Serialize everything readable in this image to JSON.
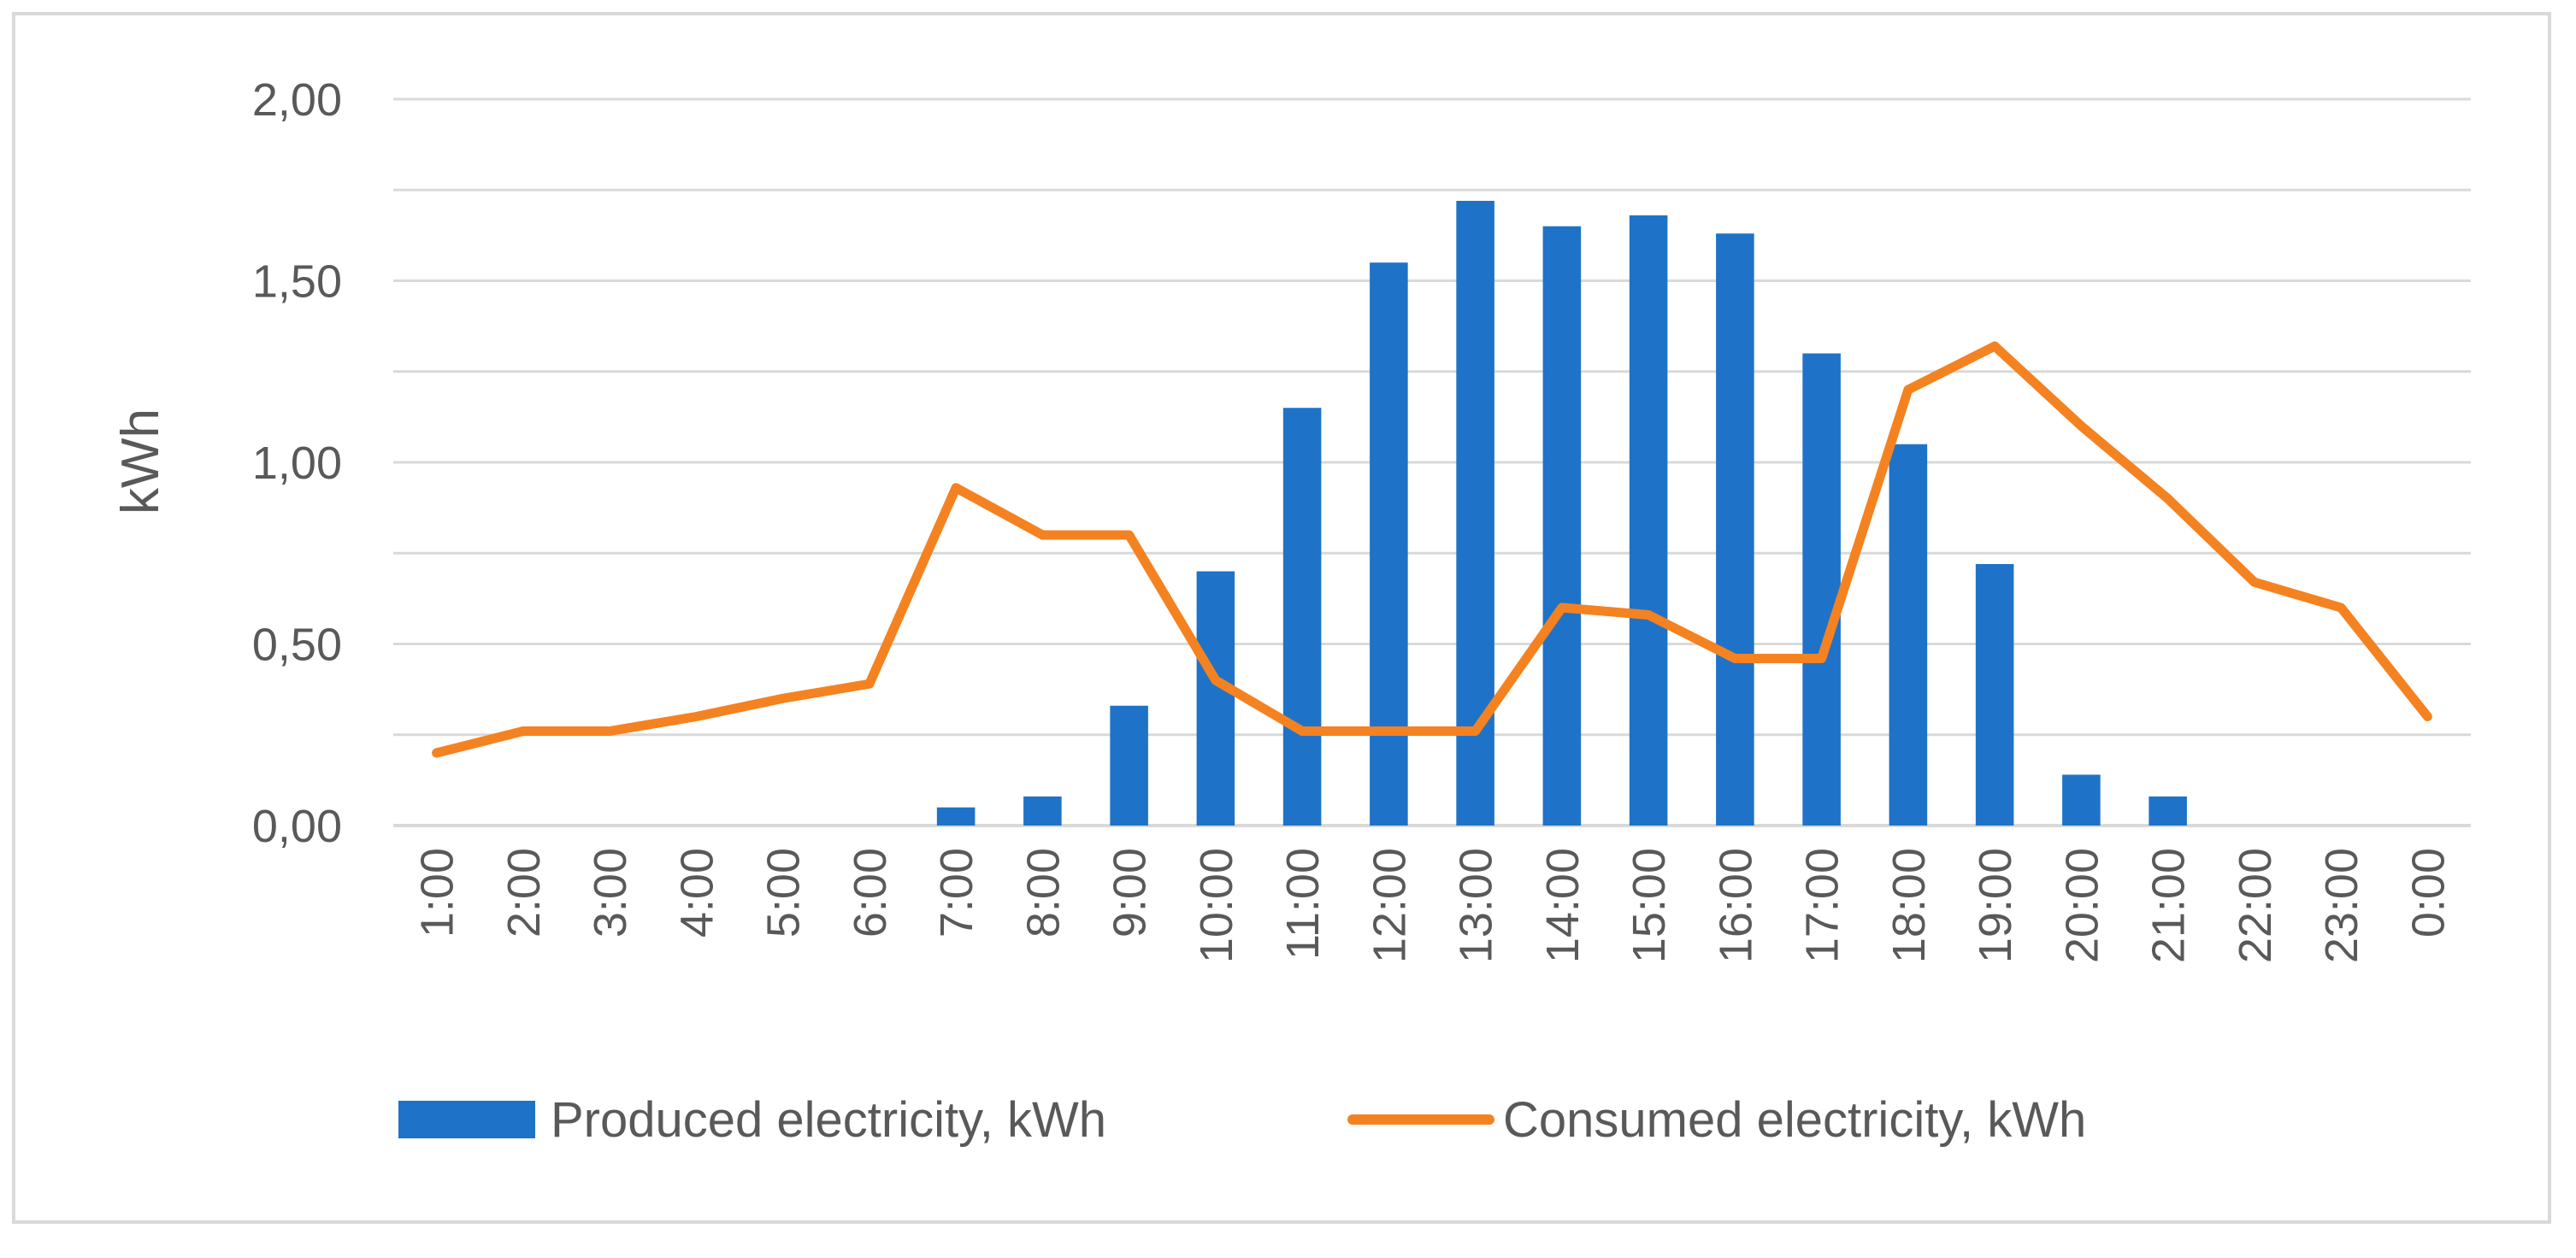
{
  "chart_data": {
    "type": "bar",
    "title": "",
    "xlabel": "",
    "ylabel": "kWh",
    "ylim": [
      0,
      2
    ],
    "grid": true,
    "legend_position": "bottom",
    "y_ticks": [
      "0,00",
      "0,50",
      "1,00",
      "1,50",
      "2,00"
    ],
    "y_tick_values": [
      0,
      0.5,
      1,
      1.5,
      2
    ],
    "categories": [
      "1:00",
      "2:00",
      "3:00",
      "4:00",
      "5:00",
      "6:00",
      "7:00",
      "8:00",
      "9:00",
      "10:00",
      "11:00",
      "12:00",
      "13:00",
      "14:00",
      "15:00",
      "16:00",
      "17:00",
      "18:00",
      "19:00",
      "20:00",
      "21:00",
      "22:00",
      "23:00",
      "0:00"
    ],
    "series": [
      {
        "name": "Produced electricity, kWh",
        "type": "bar",
        "color": "#1e73c8",
        "values": [
          0,
          0,
          0,
          0,
          0,
          0,
          0.05,
          0.08,
          0.33,
          0.7,
          1.15,
          1.55,
          1.72,
          1.65,
          1.68,
          1.63,
          1.3,
          1.05,
          0.72,
          0.14,
          0.08,
          0,
          0,
          0
        ]
      },
      {
        "name": "Consumed electricity, kWh",
        "type": "line",
        "color": "#f58220",
        "values": [
          0.2,
          0.26,
          0.26,
          0.3,
          0.35,
          0.39,
          0.93,
          0.8,
          0.8,
          0.4,
          0.26,
          0.26,
          0.26,
          0.6,
          0.58,
          0.46,
          0.46,
          1.2,
          1.32,
          1.1,
          0.9,
          0.67,
          0.6,
          0.3
        ]
      }
    ]
  }
}
